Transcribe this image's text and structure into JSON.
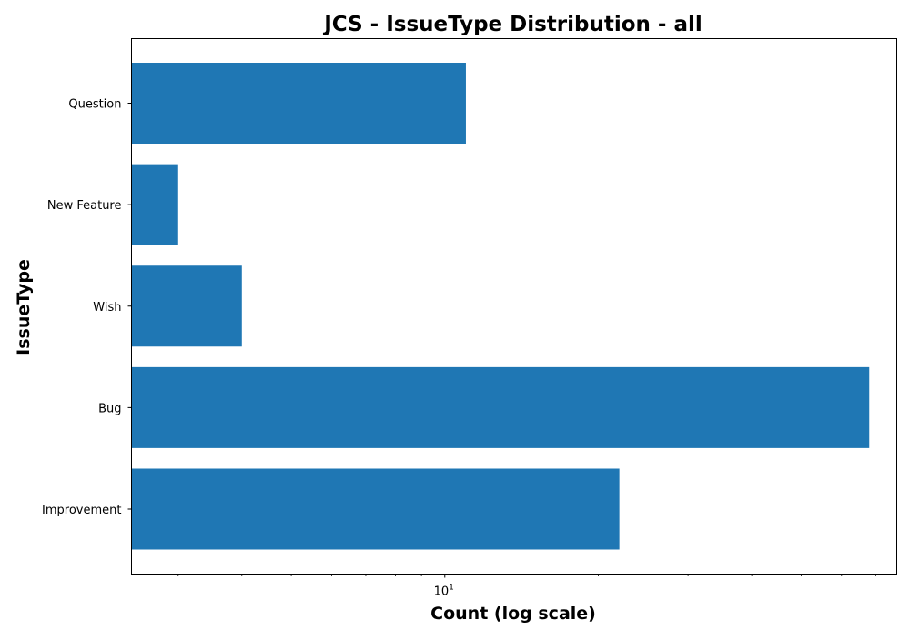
{
  "chart_data": {
    "type": "bar",
    "orientation": "horizontal",
    "title": "JCS - IssueType Distribution - all",
    "xlabel": "Count (log scale)",
    "ylabel": "IssueType",
    "x_scale": "log",
    "xlim": [
      2.43,
      77
    ],
    "categories": [
      "Improvement",
      "Bug",
      "Wish",
      "New Feature",
      "Question"
    ],
    "values": [
      22,
      68,
      4,
      3,
      11
    ],
    "x_ticks": [
      {
        "value": 10,
        "base": "10",
        "exponent": "1"
      }
    ],
    "grid": false,
    "legend": "none",
    "bar_color": "#1f77b4"
  }
}
